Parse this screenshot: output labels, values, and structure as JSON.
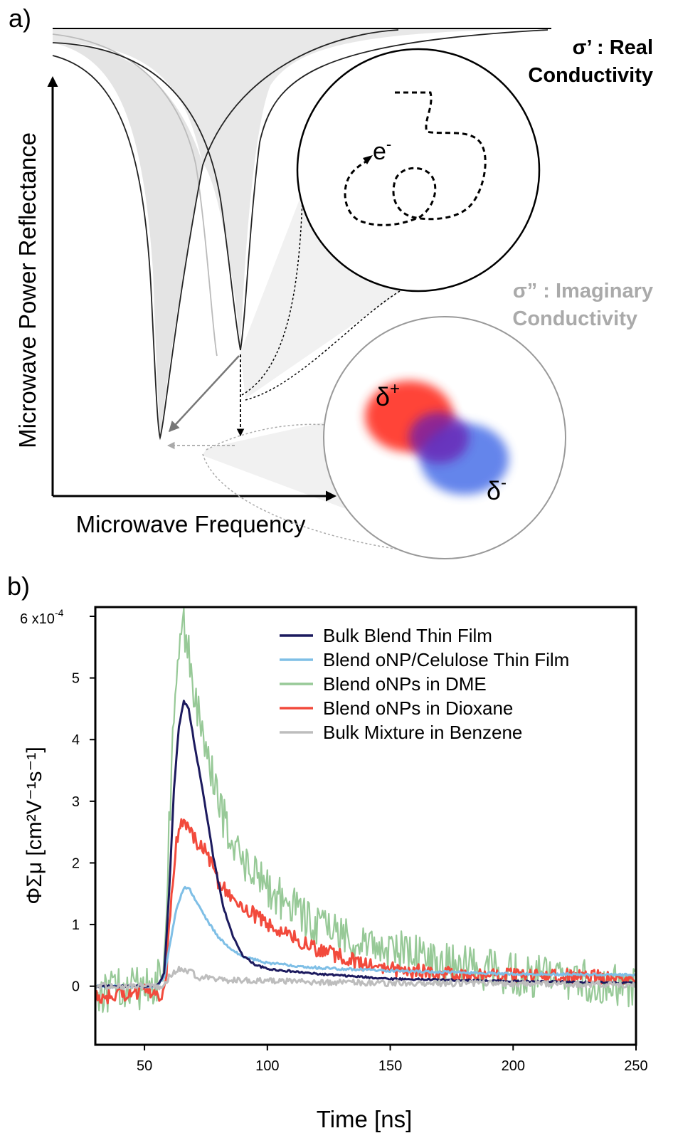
{
  "panel_a": {
    "label": "a)",
    "y_axis_label": "Microwave Power Reflectance",
    "x_axis_label": "Microwave Frequency",
    "real_label_line1": "σ’ : Real",
    "real_label_line2": "Conductivity",
    "imag_label_line1": "σ” : Imaginary",
    "imag_label_line2": "Conductivity",
    "electron_label": "e",
    "electron_sup": "-",
    "delta_plus": "δ",
    "delta_plus_sup": "+",
    "delta_minus": "δ",
    "delta_minus_sup": "-",
    "colors": {
      "real_text": "#000000",
      "imag_text": "#aaaaaa",
      "fill": "#e6e6e6",
      "dipole_positive": "#ff3b2f",
      "dipole_negative": "#4a3fe0"
    }
  },
  "panel_b": {
    "label": "b)",
    "y_multiplier": "6 x10",
    "y_multiplier_exp": "-4",
    "y_axis_label": "ΦΣμ [cm²V⁻¹s⁻¹]",
    "x_axis_label": "Time [ns]"
  },
  "chart_data": {
    "type": "line",
    "xlabel": "Time [ns]",
    "ylabel": "ΦΣμ [cm²V⁻¹s⁻¹]",
    "xlim": [
      30,
      250
    ],
    "ylim": [
      -0.95,
      6.15
    ],
    "y_scale_note": "x10^-4",
    "x_ticks": [
      50,
      100,
      150,
      200,
      250
    ],
    "y_ticks": [
      0,
      1,
      2,
      3,
      4,
      5,
      6
    ],
    "legend_position": "top-right",
    "series": [
      {
        "name": "Bulk Blend Thin Film",
        "color": "#1c1a5e",
        "noise": 0.015,
        "points": [
          [
            30,
            0.0
          ],
          [
            55,
            0.0
          ],
          [
            58,
            0.2
          ],
          [
            60,
            1.5
          ],
          [
            62,
            3.2
          ],
          [
            64,
            4.2
          ],
          [
            66,
            4.62
          ],
          [
            68,
            4.5
          ],
          [
            70,
            4.0
          ],
          [
            74,
            3.1
          ],
          [
            78,
            2.1
          ],
          [
            82,
            1.3
          ],
          [
            86,
            0.8
          ],
          [
            90,
            0.5
          ],
          [
            95,
            0.35
          ],
          [
            100,
            0.28
          ],
          [
            120,
            0.2
          ],
          [
            150,
            0.12
          ],
          [
            200,
            0.08
          ],
          [
            250,
            0.05
          ]
        ]
      },
      {
        "name": "Blend oNP/Celulose Thin Film",
        "color": "#7fbfe6",
        "noise": 0.02,
        "points": [
          [
            30,
            0.0
          ],
          [
            55,
            0.0
          ],
          [
            58,
            0.15
          ],
          [
            60,
            0.6
          ],
          [
            63,
            1.25
          ],
          [
            66,
            1.6
          ],
          [
            68,
            1.6
          ],
          [
            70,
            1.45
          ],
          [
            75,
            1.1
          ],
          [
            80,
            0.8
          ],
          [
            85,
            0.6
          ],
          [
            90,
            0.48
          ],
          [
            100,
            0.38
          ],
          [
            120,
            0.3
          ],
          [
            150,
            0.25
          ],
          [
            200,
            0.2
          ],
          [
            250,
            0.18
          ]
        ]
      },
      {
        "name": "Blend oNPs in DME",
        "color": "#97c997",
        "noise": 0.35,
        "points": [
          [
            30,
            -0.1
          ],
          [
            55,
            0.0
          ],
          [
            58,
            0.5
          ],
          [
            60,
            2.5
          ],
          [
            62,
            4.5
          ],
          [
            64,
            5.5
          ],
          [
            66,
            5.8
          ],
          [
            68,
            5.4
          ],
          [
            70,
            4.8
          ],
          [
            75,
            3.8
          ],
          [
            80,
            3.0
          ],
          [
            85,
            2.4
          ],
          [
            90,
            2.0
          ],
          [
            100,
            1.6
          ],
          [
            110,
            1.3
          ],
          [
            120,
            1.0
          ],
          [
            130,
            0.85
          ],
          [
            150,
            0.6
          ],
          [
            170,
            0.4
          ],
          [
            200,
            0.2
          ],
          [
            250,
            0.0
          ]
        ]
      },
      {
        "name": "Blend oNPs in Dioxane",
        "color": "#f24a3c",
        "noise": 0.12,
        "points": [
          [
            30,
            -0.2
          ],
          [
            55,
            -0.05
          ],
          [
            57,
            -0.25
          ],
          [
            59,
            0.3
          ],
          [
            61,
            1.5
          ],
          [
            63,
            2.4
          ],
          [
            66,
            2.72
          ],
          [
            68,
            2.6
          ],
          [
            70,
            2.4
          ],
          [
            75,
            2.2
          ],
          [
            80,
            1.7
          ],
          [
            85,
            1.5
          ],
          [
            90,
            1.3
          ],
          [
            100,
            1.0
          ],
          [
            110,
            0.8
          ],
          [
            120,
            0.6
          ],
          [
            130,
            0.48
          ],
          [
            140,
            0.35
          ],
          [
            150,
            0.28
          ],
          [
            170,
            0.22
          ],
          [
            200,
            0.17
          ],
          [
            250,
            0.15
          ]
        ]
      },
      {
        "name": "Bulk Mixture in Benzene",
        "color": "#bdbdbd",
        "noise": 0.05,
        "points": [
          [
            30,
            0.0
          ],
          [
            58,
            0.0
          ],
          [
            60,
            0.15
          ],
          [
            64,
            0.28
          ],
          [
            68,
            0.25
          ],
          [
            72,
            0.15
          ],
          [
            80,
            0.1
          ],
          [
            100,
            0.08
          ],
          [
            150,
            0.05
          ],
          [
            250,
            0.03
          ]
        ]
      }
    ]
  }
}
